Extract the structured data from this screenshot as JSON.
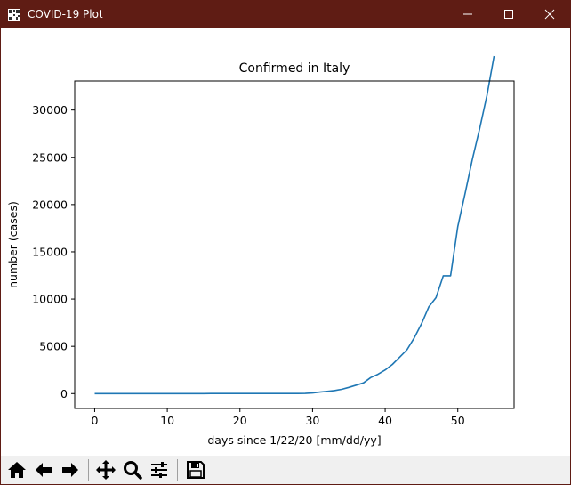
{
  "window": {
    "title": "COVID-19 Plot",
    "colors": {
      "titlebar": "#5f1c14",
      "line": "#1f77b4"
    }
  },
  "toolbar": {
    "buttons": [
      "home",
      "back",
      "forward",
      "pan",
      "zoom",
      "configure-subplots",
      "save"
    ]
  },
  "chart_data": {
    "type": "line",
    "title": "Confirmed in Italy",
    "xlabel": "days since 1/22/20 [mm/dd/yy]",
    "ylabel": "number (cases)",
    "xlim": [
      -2.75,
      57.75
    ],
    "ylim": [
      -1575,
      33075
    ],
    "xticks": [
      0,
      10,
      20,
      30,
      40,
      50
    ],
    "yticks": [
      0,
      5000,
      10000,
      15000,
      20000,
      25000,
      30000
    ],
    "grid": false,
    "series": [
      {
        "x": [
          0,
          1,
          2,
          3,
          4,
          5,
          6,
          7,
          8,
          9,
          10,
          11,
          12,
          13,
          14,
          15,
          16,
          17,
          18,
          19,
          20,
          21,
          22,
          23,
          24,
          25,
          26,
          27,
          28,
          29,
          30,
          31,
          32,
          33,
          34,
          35,
          36,
          37,
          38,
          39,
          40,
          41,
          42,
          43,
          44,
          45,
          46,
          47,
          48,
          49,
          50,
          51,
          52,
          53,
          54,
          55
        ],
        "values": [
          0,
          0,
          0,
          0,
          0,
          0,
          0,
          0,
          0,
          2,
          2,
          2,
          2,
          2,
          2,
          2,
          3,
          3,
          3,
          3,
          3,
          3,
          3,
          3,
          3,
          3,
          3,
          3,
          3,
          20,
          62,
          155,
          229,
          322,
          453,
          655,
          888,
          1128,
          1694,
          2036,
          2502,
          3089,
          3858,
          4636,
          5883,
          7375,
          9172,
          10149,
          12462,
          12462,
          17660,
          21157,
          24747,
          27980,
          31506,
          35713
        ]
      }
    ]
  }
}
